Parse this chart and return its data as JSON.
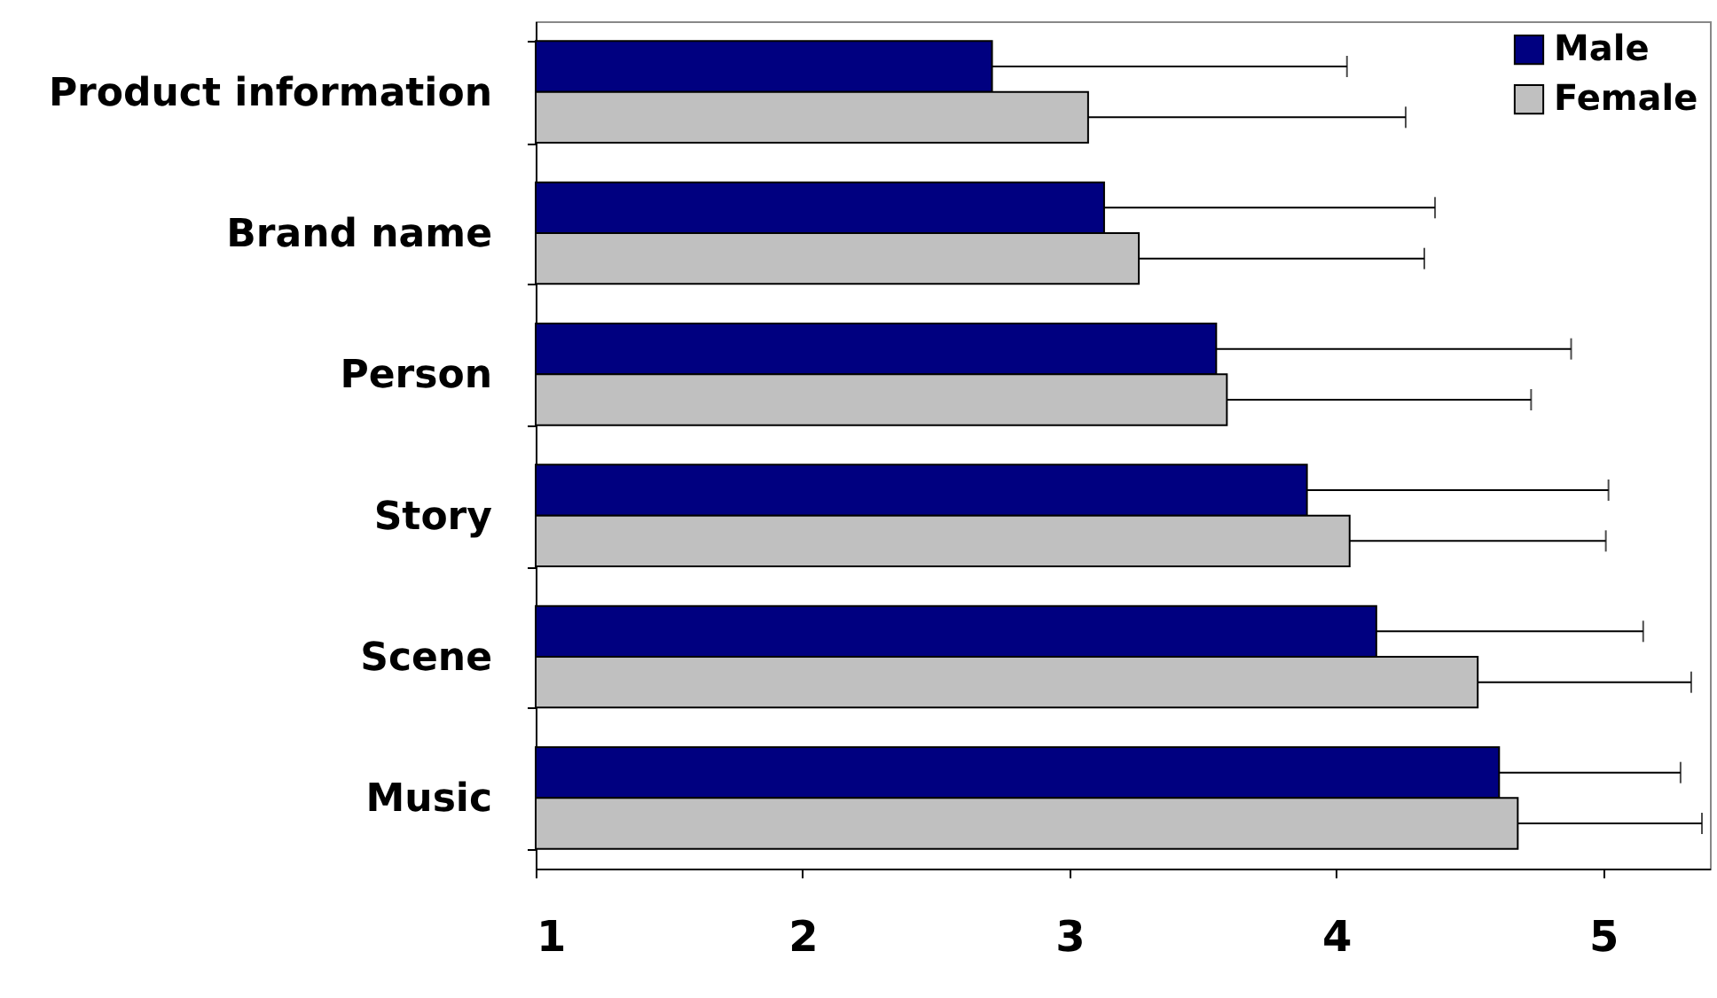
{
  "chart_data": {
    "type": "bar",
    "orientation": "horizontal",
    "categories": [
      "Product information",
      "Brand name",
      "Person",
      "Story",
      "Scene",
      "Music"
    ],
    "series": [
      {
        "name": "Male",
        "color": "#000080",
        "values": [
          2.71,
          3.13,
          3.55,
          3.89,
          4.15,
          4.61
        ],
        "errors": [
          [
            2.71,
            4.04
          ],
          [
            3.13,
            4.37
          ],
          [
            3.55,
            4.88
          ],
          [
            3.89,
            5.02
          ],
          [
            4.15,
            5.15
          ],
          [
            4.61,
            5.29
          ]
        ]
      },
      {
        "name": "Female",
        "color": "#c0c0c0",
        "values": [
          3.07,
          3.26,
          3.59,
          4.05,
          4.53,
          4.68
        ],
        "errors": [
          [
            3.07,
            4.26
          ],
          [
            3.26,
            4.33
          ],
          [
            3.59,
            4.73
          ],
          [
            4.05,
            5.01
          ],
          [
            4.53,
            5.33
          ],
          [
            4.68,
            5.37
          ]
        ]
      }
    ],
    "xlim": [
      1,
      5.4
    ],
    "xticks": [
      1,
      2,
      3,
      4,
      5
    ],
    "grid": false,
    "legend": "top right"
  }
}
